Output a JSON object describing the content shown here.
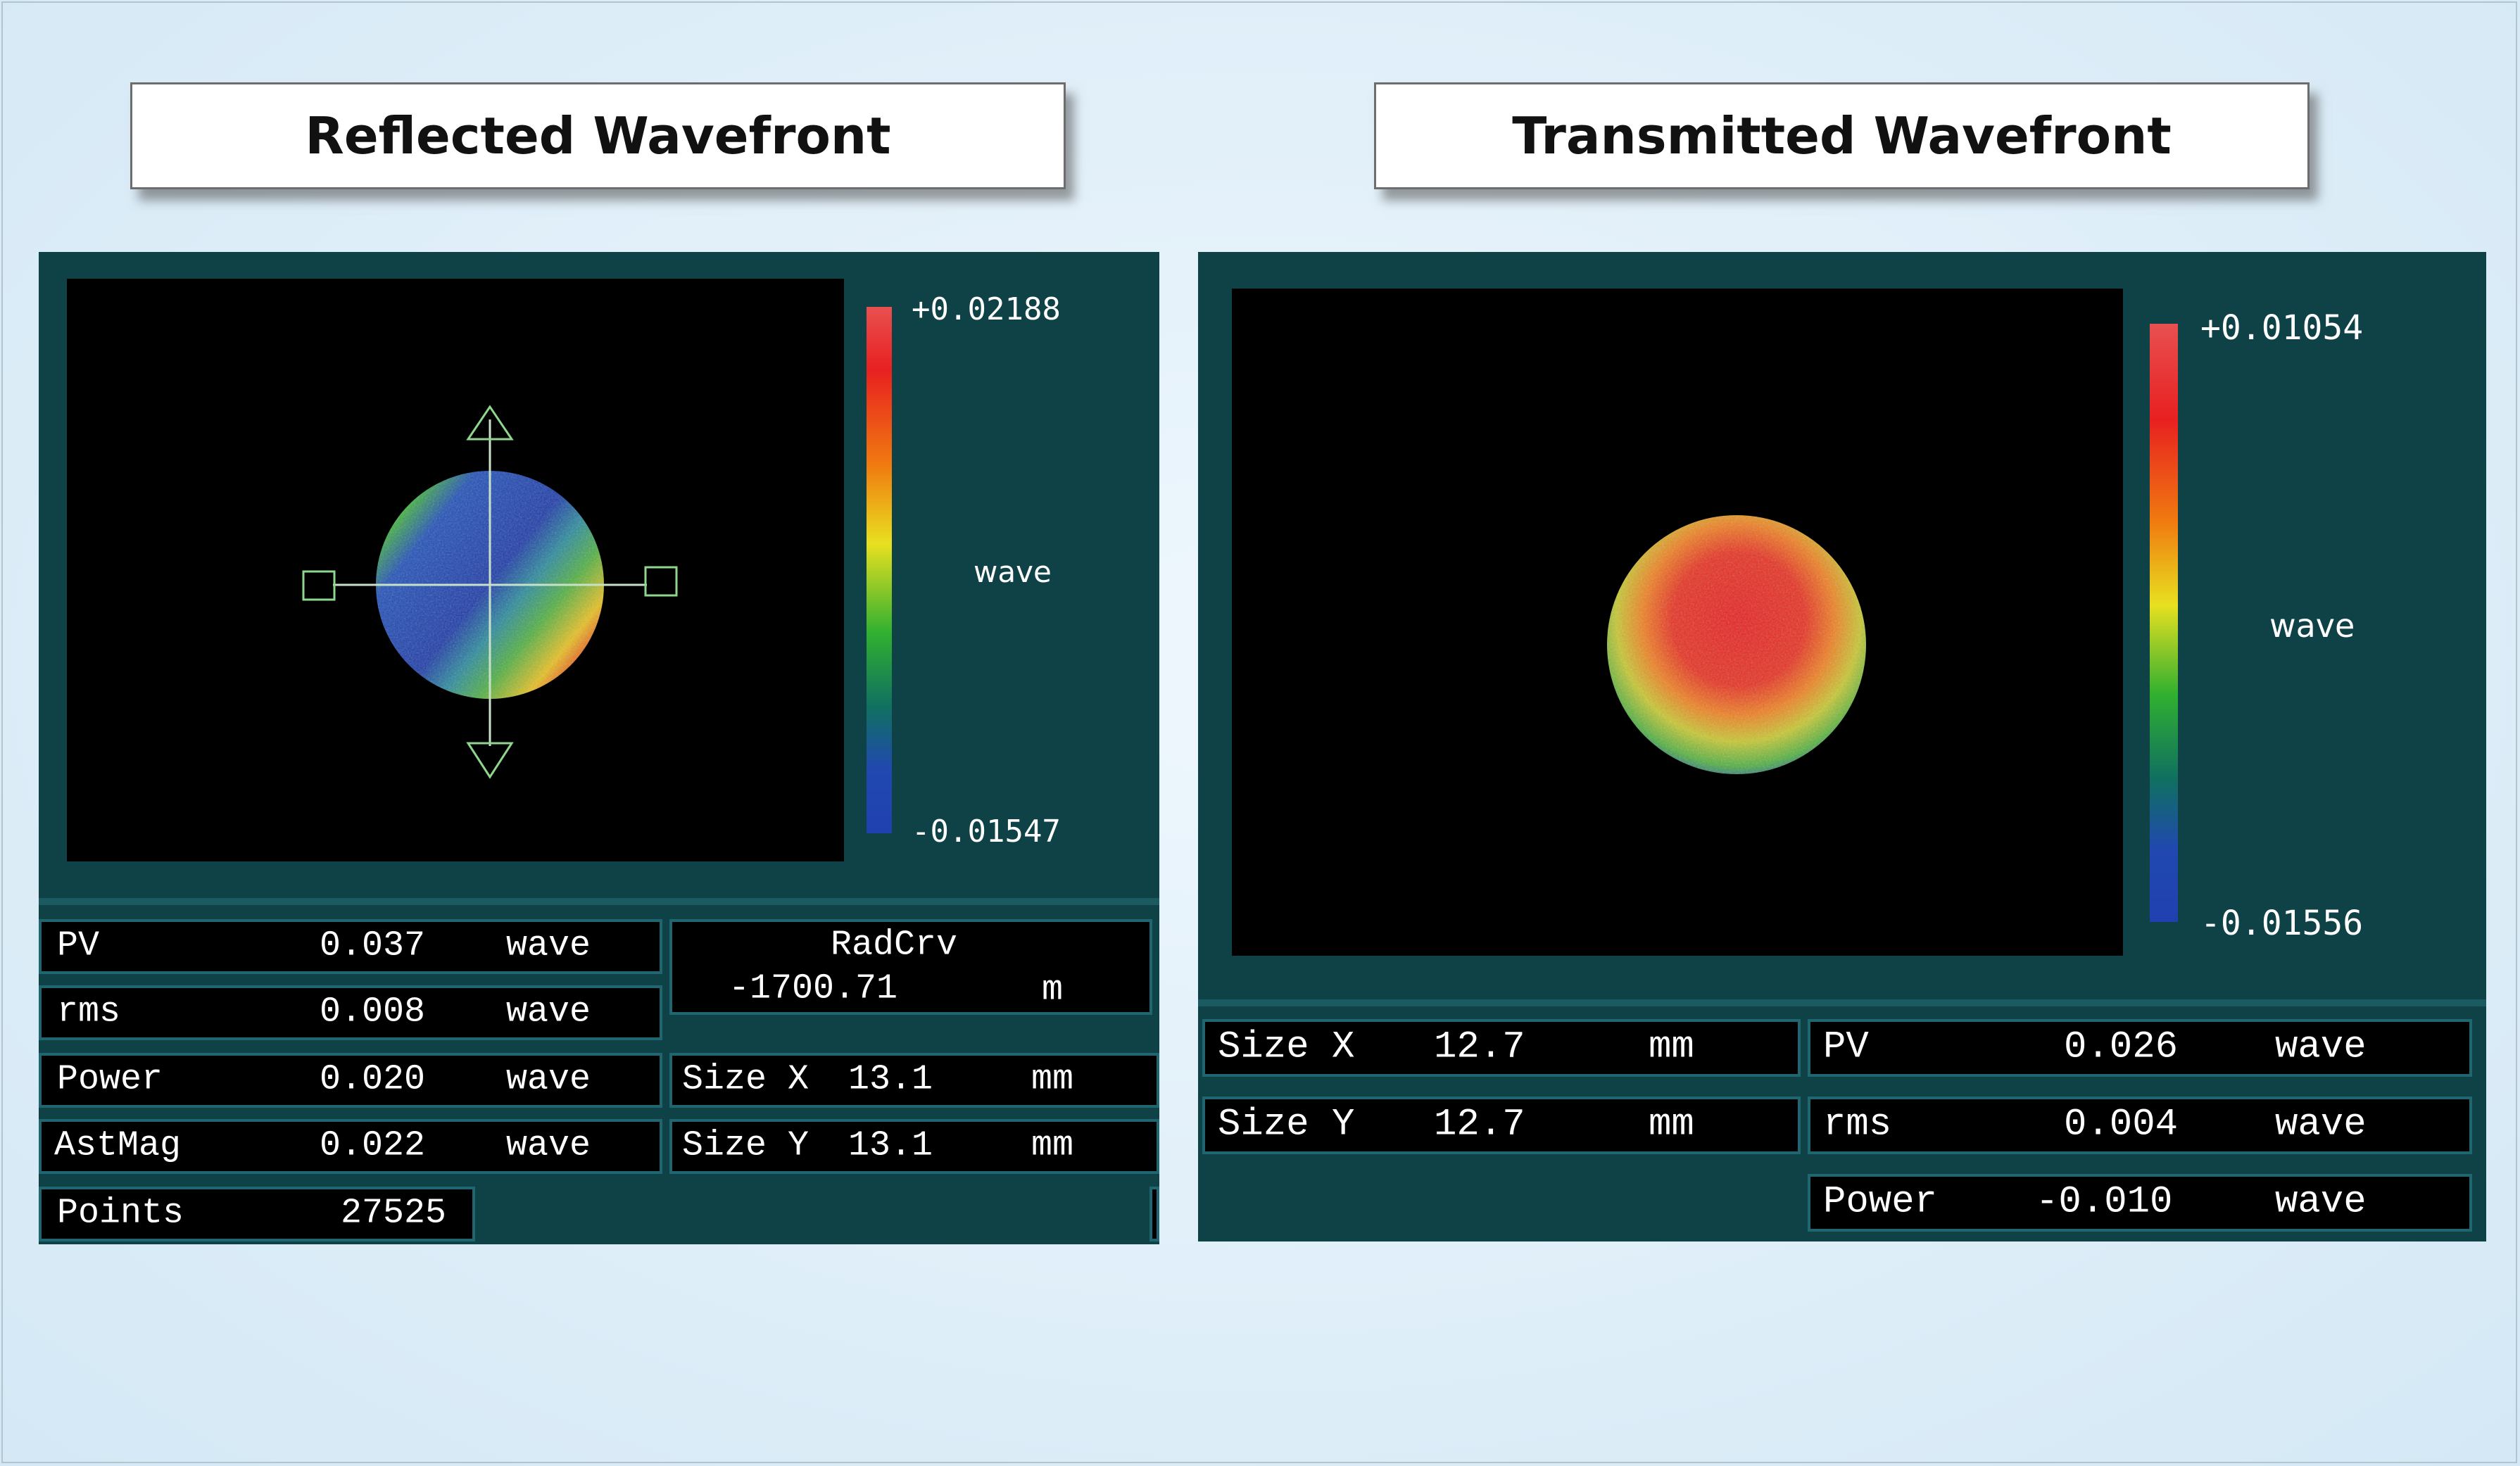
{
  "colors": {
    "panel_bg": "#0e4247",
    "cell_bg": "#000000",
    "cell_border": "#1f6670",
    "page_bg": "#dcecf7"
  },
  "reflected": {
    "title": "Reflected Wavefront",
    "colorbar": {
      "max": "+0.02188",
      "min": "-0.01547",
      "unit": "wave"
    },
    "pv": {
      "label": "PV",
      "value": "0.037",
      "unit": "wave"
    },
    "rms": {
      "label": "rms",
      "value": "0.008",
      "unit": "wave"
    },
    "power": {
      "label": "Power",
      "value": "0.020",
      "unit": "wave"
    },
    "astmag": {
      "label": "AstMag",
      "value": "0.022",
      "unit": "wave"
    },
    "points": {
      "label": "Points",
      "value": "27525"
    },
    "radcrv": {
      "label": "RadCrv",
      "value": "-1700.71",
      "unit": "m"
    },
    "size_x": {
      "label": "Size X",
      "value": "13.1",
      "unit": "mm"
    },
    "size_y": {
      "label": "Size Y",
      "value": "13.1",
      "unit": "mm"
    }
  },
  "transmitted": {
    "title": "Transmitted Wavefront",
    "colorbar": {
      "max": "+0.01054",
      "min": "-0.01556",
      "unit": "wave"
    },
    "size_x": {
      "label": "Size X",
      "value": "12.7",
      "unit": "mm"
    },
    "size_y": {
      "label": "Size Y",
      "value": "12.7",
      "unit": "mm"
    },
    "pv": {
      "label": "PV",
      "value": "0.026",
      "unit": "wave"
    },
    "rms": {
      "label": "rms",
      "value": "0.004",
      "unit": "wave"
    },
    "power": {
      "label": "Power",
      "value": "-0.010",
      "unit": "wave"
    }
  }
}
